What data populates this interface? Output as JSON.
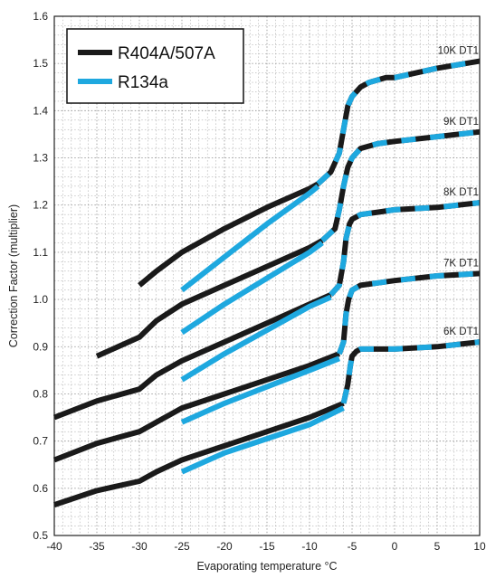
{
  "chart_data": {
    "type": "line",
    "xlabel": "Evaporating temperature °C",
    "ylabel": "Correction Factor (multiplier)",
    "xlim": [
      -40,
      10
    ],
    "ylim": [
      0.5,
      1.6
    ],
    "x_ticks": [
      "-40",
      "-35",
      "-30",
      "-25",
      "-20",
      "-15",
      "-10",
      "-5",
      "0",
      "5",
      "10"
    ],
    "y_ticks": [
      "0.5",
      "0.6",
      "0.7",
      "0.8",
      "0.9",
      "1.0",
      "1.1",
      "1.2",
      "1.3",
      "1.4",
      "1.5",
      "1.6"
    ],
    "grid": true,
    "legend": {
      "placement": "top-left",
      "entries": [
        {
          "label": "R404A/507A",
          "color": "#1a1a1a"
        },
        {
          "label": "R134a",
          "color": "#1ea8df"
        }
      ]
    },
    "colors": {
      "r404a": "#1a1a1a",
      "r134a": "#1ea8df",
      "grid": "#9a9a9a"
    },
    "curve_labels": [
      "10K DT1",
      "9K DT1",
      "8K DT1",
      "7K DT1",
      "6K DT1"
    ],
    "series": [
      {
        "refrigerant": "R404A/507A",
        "curve": "10K DT1",
        "x": [
          -30,
          -28,
          -25,
          -20,
          -15,
          -10,
          -9
        ],
        "y": [
          1.03,
          1.06,
          1.1,
          1.15,
          1.195,
          1.235,
          1.245
        ]
      },
      {
        "refrigerant": "R404A/507A",
        "curve": "9K DT1",
        "x": [
          -35,
          -30,
          -28,
          -25,
          -20,
          -15,
          -10,
          -8.5
        ],
        "y": [
          0.88,
          0.92,
          0.955,
          0.99,
          1.03,
          1.07,
          1.11,
          1.125
        ]
      },
      {
        "refrigerant": "R404A/507A",
        "curve": "8K DT1",
        "x": [
          -40,
          -35,
          -30,
          -28,
          -25,
          -20,
          -15,
          -10,
          -7.5
        ],
        "y": [
          0.75,
          0.785,
          0.81,
          0.84,
          0.87,
          0.91,
          0.95,
          0.99,
          1.01
        ]
      },
      {
        "refrigerant": "R404A/507A",
        "curve": "7K DT1",
        "x": [
          -40,
          -35,
          -30,
          -28,
          -25,
          -20,
          -15,
          -10,
          -6.5
        ],
        "y": [
          0.66,
          0.695,
          0.72,
          0.74,
          0.77,
          0.8,
          0.83,
          0.86,
          0.885
        ]
      },
      {
        "refrigerant": "R404A/507A",
        "curve": "6K DT1",
        "x": [
          -40,
          -35,
          -30,
          -28,
          -25,
          -20,
          -15,
          -10,
          -6
        ],
        "y": [
          0.565,
          0.595,
          0.615,
          0.635,
          0.66,
          0.69,
          0.72,
          0.75,
          0.78
        ]
      },
      {
        "refrigerant": "R134a",
        "curve": "10K DT1",
        "x": [
          -25,
          -20,
          -15,
          -10,
          -9
        ],
        "y": [
          1.02,
          1.09,
          1.16,
          1.225,
          1.24
        ]
      },
      {
        "refrigerant": "R134a",
        "curve": "9K DT1",
        "x": [
          -25,
          -20,
          -15,
          -10,
          -8.5
        ],
        "y": [
          0.93,
          0.99,
          1.045,
          1.1,
          1.12
        ]
      },
      {
        "refrigerant": "R134a",
        "curve": "8K DT1",
        "x": [
          -25,
          -20,
          -15,
          -10,
          -7.5
        ],
        "y": [
          0.83,
          0.885,
          0.935,
          0.985,
          1.005
        ]
      },
      {
        "refrigerant": "R134a",
        "curve": "7K DT1",
        "x": [
          -25,
          -20,
          -15,
          -10,
          -6.5
        ],
        "y": [
          0.74,
          0.78,
          0.815,
          0.85,
          0.875
        ]
      },
      {
        "refrigerant": "R134a",
        "curve": "6K DT1",
        "x": [
          -25,
          -20,
          -15,
          -10,
          -6
        ],
        "y": [
          0.635,
          0.675,
          0.705,
          0.735,
          0.77
        ]
      },
      {
        "refrigerant": "Both (dashed)",
        "curve": "10K DT1",
        "x": [
          -9,
          -7.5,
          -6.5,
          -6,
          -5.5,
          -5,
          -4,
          -3,
          -1,
          0,
          5,
          10
        ],
        "y": [
          1.245,
          1.27,
          1.31,
          1.36,
          1.41,
          1.43,
          1.45,
          1.46,
          1.47,
          1.47,
          1.49,
          1.505
        ]
      },
      {
        "refrigerant": "Both (dashed)",
        "curve": "9K DT1",
        "x": [
          -8.5,
          -7,
          -6.5,
          -6,
          -5.5,
          -5,
          -4,
          -2,
          0,
          5,
          10
        ],
        "y": [
          1.125,
          1.15,
          1.19,
          1.24,
          1.28,
          1.3,
          1.32,
          1.33,
          1.335,
          1.345,
          1.355
        ]
      },
      {
        "refrigerant": "Both (dashed)",
        "curve": "8K DT1",
        "x": [
          -7.5,
          -6.5,
          -6,
          -5.7,
          -5.3,
          -5,
          -4,
          -2,
          0,
          5,
          10
        ],
        "y": [
          1.01,
          1.03,
          1.08,
          1.13,
          1.16,
          1.17,
          1.18,
          1.185,
          1.19,
          1.195,
          1.205
        ]
      },
      {
        "refrigerant": "Both (dashed)",
        "curve": "7K DT1",
        "x": [
          -6.5,
          -6,
          -5.7,
          -5.4,
          -5,
          -4,
          -2,
          0,
          5,
          10
        ],
        "y": [
          0.885,
          0.91,
          0.97,
          1.0,
          1.02,
          1.03,
          1.035,
          1.04,
          1.05,
          1.055
        ]
      },
      {
        "refrigerant": "Both (dashed)",
        "curve": "6K DT1",
        "x": [
          -6,
          -5.5,
          -5.2,
          -5,
          -4.5,
          -4,
          -3,
          0,
          5,
          10
        ],
        "y": [
          0.78,
          0.82,
          0.86,
          0.88,
          0.89,
          0.895,
          0.895,
          0.895,
          0.9,
          0.91
        ]
      }
    ]
  }
}
